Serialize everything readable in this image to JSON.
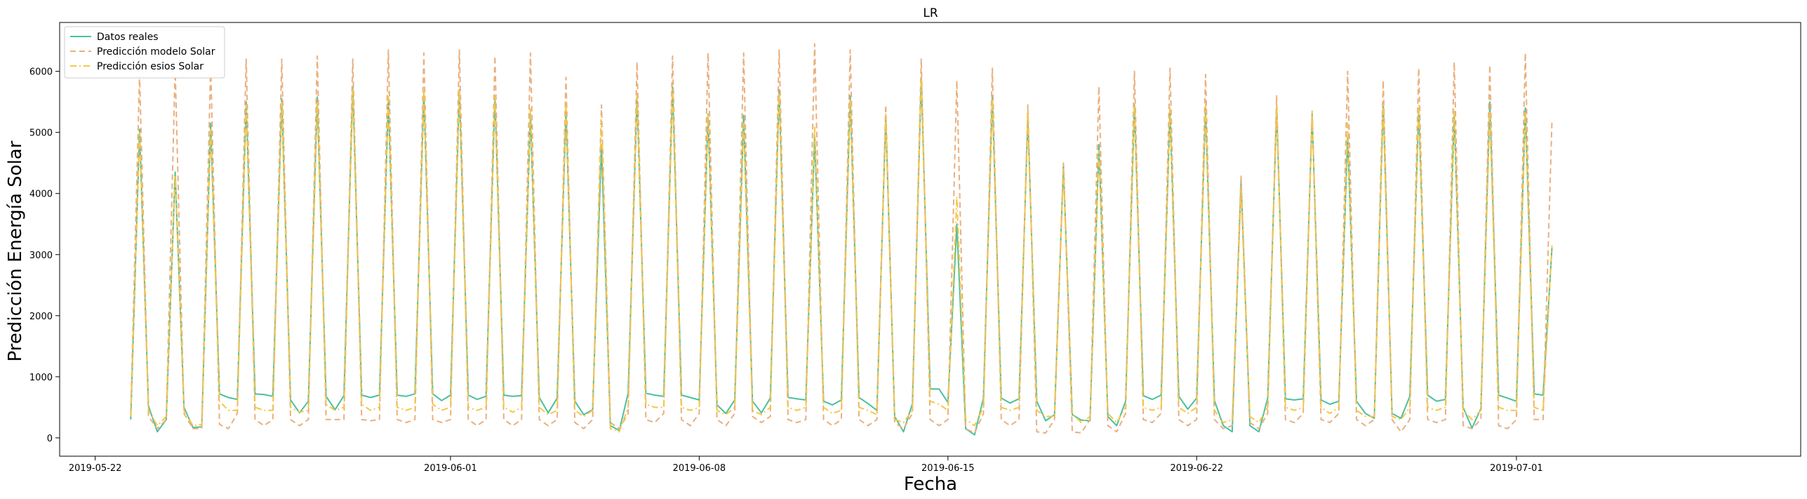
{
  "chart_data": {
    "type": "line",
    "title": "LR",
    "xlabel": "Fecha",
    "ylabel": "Predicción Energía Solar",
    "x_start": "2019-05-23 00:00",
    "x_step_hours": 6,
    "xlim": [
      "2019-05-21",
      "2019-07-09"
    ],
    "ylim": [
      -300,
      6800
    ],
    "x_ticks": [
      "2019-05-22",
      "2019-06-01",
      "2019-06-08",
      "2019-06-15",
      "2019-06-22",
      "2019-07-01"
    ],
    "y_ticks": [
      0,
      1000,
      2000,
      3000,
      4000,
      5000,
      6000
    ],
    "legend_position": "top-left",
    "grid": false,
    "series": [
      {
        "name": "Datos reales",
        "color": "#4dbf9f",
        "style": "solid",
        "values": [
          300,
          5050,
          520,
          100,
          300,
          4350,
          500,
          170,
          180,
          5150,
          720,
          660,
          630,
          5500,
          720,
          710,
          680,
          5550,
          620,
          410,
          600,
          5580,
          680,
          460,
          690,
          5750,
          700,
          660,
          700,
          5520,
          700,
          680,
          720,
          5650,
          720,
          610,
          700,
          5700,
          700,
          630,
          680,
          5600,
          700,
          680,
          690,
          5300,
          660,
          410,
          650,
          5350,
          600,
          380,
          460,
          4800,
          200,
          120,
          730,
          5600,
          730,
          700,
          680,
          5750,
          700,
          660,
          620,
          5300,
          540,
          400,
          620,
          5280,
          600,
          410,
          650,
          5700,
          660,
          640,
          620,
          4950,
          600,
          540,
          620,
          5600,
          660,
          560,
          450,
          5250,
          350,
          100,
          560,
          5900,
          800,
          800,
          580,
          3500,
          150,
          50,
          650,
          5600,
          650,
          570,
          640,
          5250,
          600,
          280,
          380,
          4450,
          380,
          290,
          280,
          4800,
          350,
          200,
          600,
          5450,
          690,
          630,
          700,
          5350,
          680,
          470,
          650,
          5400,
          610,
          200,
          100,
          4200,
          200,
          100,
          650,
          5400,
          640,
          620,
          640,
          5300,
          620,
          550,
          600,
          4950,
          600,
          400,
          320,
          5500,
          400,
          320,
          680,
          5400,
          700,
          600,
          630,
          5300,
          500,
          160,
          480,
          5500,
          700,
          650,
          600,
          5400,
          720,
          700,
          3120
        ]
      },
      {
        "name": "Predicción modelo Solar",
        "color": "#e9b07f",
        "style": "dashed",
        "values": [
          400,
          5950,
          350,
          150,
          300,
          6050,
          400,
          150,
          150,
          6100,
          220,
          150,
          400,
          6200,
          300,
          200,
          300,
          6200,
          300,
          200,
          300,
          6250,
          300,
          300,
          300,
          6200,
          300,
          280,
          300,
          6350,
          300,
          250,
          300,
          6300,
          300,
          250,
          300,
          6350,
          300,
          200,
          300,
          6250,
          300,
          200,
          300,
          6300,
          300,
          200,
          300,
          5900,
          250,
          150,
          300,
          5450,
          250,
          150,
          400,
          6150,
          300,
          250,
          400,
          6250,
          300,
          200,
          400,
          6300,
          300,
          200,
          400,
          6300,
          350,
          250,
          350,
          6350,
          300,
          250,
          300,
          6450,
          300,
          200,
          300,
          6350,
          300,
          200,
          300,
          5450,
          250,
          150,
          400,
          6200,
          300,
          200,
          300,
          5850,
          150,
          80,
          400,
          6050,
          300,
          200,
          300,
          5450,
          100,
          80,
          300,
          4500,
          100,
          80,
          300,
          5750,
          200,
          100,
          400,
          6000,
          300,
          250,
          400,
          6050,
          300,
          200,
          300,
          5950,
          300,
          150,
          200,
          4300,
          250,
          150,
          400,
          5600,
          300,
          250,
          400,
          5300,
          300,
          250,
          400,
          6000,
          300,
          200,
          300,
          5850,
          300,
          100,
          300,
          6050,
          300,
          250,
          300,
          6150,
          200,
          150,
          300,
          6100,
          200,
          150,
          300,
          6300,
          300,
          300,
          5200
        ]
      },
      {
        "name": "Predicción esios Solar",
        "color": "#f5c842",
        "style": "dashdot",
        "values": [
          350,
          5000,
          450,
          200,
          350,
          4300,
          450,
          200,
          220,
          5050,
          600,
          450,
          450,
          5450,
          500,
          450,
          450,
          5500,
          500,
          420,
          450,
          5500,
          550,
          450,
          500,
          5700,
          550,
          450,
          500,
          5650,
          500,
          450,
          500,
          5700,
          550,
          450,
          500,
          5700,
          500,
          450,
          500,
          5600,
          500,
          420,
          500,
          5400,
          500,
          380,
          450,
          5500,
          450,
          350,
          450,
          5200,
          150,
          100,
          500,
          5600,
          550,
          500,
          500,
          5700,
          500,
          450,
          500,
          5300,
          450,
          380,
          500,
          5150,
          450,
          380,
          500,
          5650,
          500,
          450,
          500,
          5100,
          500,
          400,
          450,
          5550,
          500,
          450,
          380,
          5300,
          300,
          250,
          450,
          5900,
          600,
          550,
          450,
          3950,
          300,
          200,
          500,
          5550,
          500,
          450,
          500,
          5350,
          450,
          350,
          350,
          4400,
          400,
          250,
          350,
          4700,
          400,
          250,
          500,
          5450,
          500,
          450,
          500,
          5400,
          500,
          400,
          500,
          5450,
          450,
          250,
          300,
          4050,
          350,
          250,
          500,
          5450,
          500,
          450,
          500,
          5350,
          500,
          400,
          500,
          5150,
          450,
          350,
          350,
          5450,
          350,
          300,
          500,
          5450,
          500,
          450,
          500,
          5350,
          450,
          300,
          450,
          5350,
          500,
          450,
          450,
          5350,
          500,
          450,
          3150
        ]
      }
    ]
  }
}
